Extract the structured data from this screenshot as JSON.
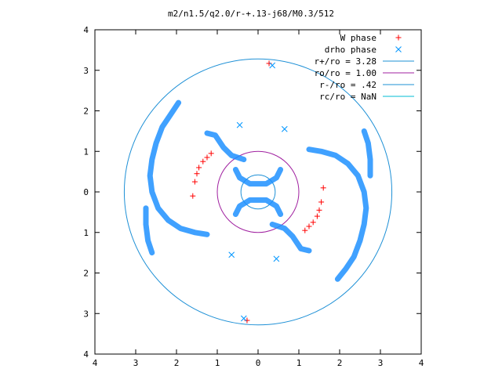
{
  "chart_data": {
    "type": "scatter",
    "title": "m2/n1.5/q2.0/r-+.13-j68/M0.3/512",
    "xlabel": "",
    "ylabel": "",
    "xlim": [
      -4,
      4
    ],
    "ylim": [
      -4,
      4
    ],
    "x_tick_labels": [
      "4",
      "3",
      "2",
      "1",
      "0",
      "1",
      "2",
      "3",
      "4"
    ],
    "y_tick_labels": [
      "4",
      "3",
      "2",
      "1",
      "0",
      "1",
      "2",
      "3",
      "4"
    ],
    "legend_position": "top-right",
    "grid": false,
    "series": [
      {
        "name": "W phase",
        "marker": "+",
        "color": "#ff0000",
        "points": [
          [
            0.27,
            3.17
          ],
          [
            -0.27,
            -3.17
          ],
          [
            1.6,
            0.1
          ],
          [
            1.55,
            -0.25
          ],
          [
            1.5,
            -0.45
          ],
          [
            1.45,
            -0.6
          ],
          [
            1.35,
            -0.75
          ],
          [
            1.25,
            -0.85
          ],
          [
            1.15,
            -0.95
          ],
          [
            -1.6,
            -0.1
          ],
          [
            -1.55,
            0.25
          ],
          [
            -1.5,
            0.45
          ],
          [
            -1.45,
            0.6
          ],
          [
            -1.35,
            0.75
          ],
          [
            -1.25,
            0.85
          ],
          [
            -1.15,
            0.95
          ]
        ]
      },
      {
        "name": "drho phase",
        "marker": "x",
        "color": "#0096ff",
        "points": [
          [
            -0.65,
            -1.55
          ],
          [
            -0.35,
            -3.12
          ],
          [
            0.65,
            1.55
          ],
          [
            0.35,
            3.12
          ],
          [
            0.45,
            -1.65
          ],
          [
            -0.45,
            1.65
          ]
        ]
      }
    ],
    "circles": [
      {
        "name": "r+/ro = 3.28",
        "radius": 3.28,
        "color": "#1e90d6"
      },
      {
        "name": "ro/ro = 1.00",
        "radius": 1.0,
        "color": "#a020a0"
      },
      {
        "name": "r-/ro = .42",
        "radius": 0.42,
        "color": "#1e90d6"
      },
      {
        "name": "rc/ro = NaN",
        "radius": null,
        "color": "#00bcd4"
      }
    ],
    "spiral_arms": [
      {
        "color": "#1e90ff",
        "points": [
          [
            1.25,
            1.05
          ],
          [
            1.55,
            1.0
          ],
          [
            1.9,
            0.9
          ],
          [
            2.2,
            0.7
          ],
          [
            2.45,
            0.4
          ],
          [
            2.6,
            0.0
          ],
          [
            2.65,
            -0.4
          ],
          [
            2.6,
            -0.8
          ],
          [
            2.5,
            -1.2
          ],
          [
            2.35,
            -1.6
          ],
          [
            2.15,
            -1.9
          ],
          [
            1.95,
            -2.15
          ]
        ]
      },
      {
        "color": "#1e90ff",
        "points": [
          [
            -1.25,
            -1.05
          ],
          [
            -1.55,
            -1.0
          ],
          [
            -1.9,
            -0.9
          ],
          [
            -2.2,
            -0.7
          ],
          [
            -2.45,
            -0.4
          ],
          [
            -2.6,
            0.0
          ],
          [
            -2.65,
            0.4
          ],
          [
            -2.6,
            0.8
          ],
          [
            -2.5,
            1.2
          ],
          [
            -2.35,
            1.6
          ],
          [
            -2.15,
            1.9
          ],
          [
            -1.95,
            2.2
          ]
        ]
      },
      {
        "color": "#1e90ff",
        "points": [
          [
            -0.35,
            0.8
          ],
          [
            -0.65,
            0.9
          ],
          [
            -0.85,
            1.1
          ],
          [
            -1.05,
            1.4
          ],
          [
            -1.25,
            1.45
          ]
        ]
      },
      {
        "color": "#1e90ff",
        "points": [
          [
            0.35,
            -0.8
          ],
          [
            0.65,
            -0.9
          ],
          [
            0.85,
            -1.1
          ],
          [
            1.05,
            -1.4
          ],
          [
            1.25,
            -1.45
          ]
        ]
      },
      {
        "color": "#1e90ff",
        "points": [
          [
            -0.55,
            -0.55
          ],
          [
            -0.45,
            -0.35
          ],
          [
            -0.2,
            -0.2
          ],
          [
            0.2,
            -0.2
          ],
          [
            0.45,
            -0.35
          ],
          [
            0.55,
            -0.55
          ]
        ]
      },
      {
        "color": "#1e90ff",
        "points": [
          [
            0.55,
            0.55
          ],
          [
            0.45,
            0.35
          ],
          [
            0.2,
            0.2
          ],
          [
            -0.2,
            0.2
          ],
          [
            -0.45,
            0.35
          ],
          [
            -0.55,
            0.55
          ]
        ]
      },
      {
        "color": "#1e90ff",
        "points": [
          [
            2.6,
            1.5
          ],
          [
            2.7,
            1.2
          ],
          [
            2.75,
            0.8
          ],
          [
            2.75,
            0.4
          ]
        ]
      },
      {
        "color": "#1e90ff",
        "points": [
          [
            -2.6,
            -1.5
          ],
          [
            -2.7,
            -1.2
          ],
          [
            -2.75,
            -0.8
          ],
          [
            -2.75,
            -0.4
          ]
        ]
      }
    ]
  }
}
